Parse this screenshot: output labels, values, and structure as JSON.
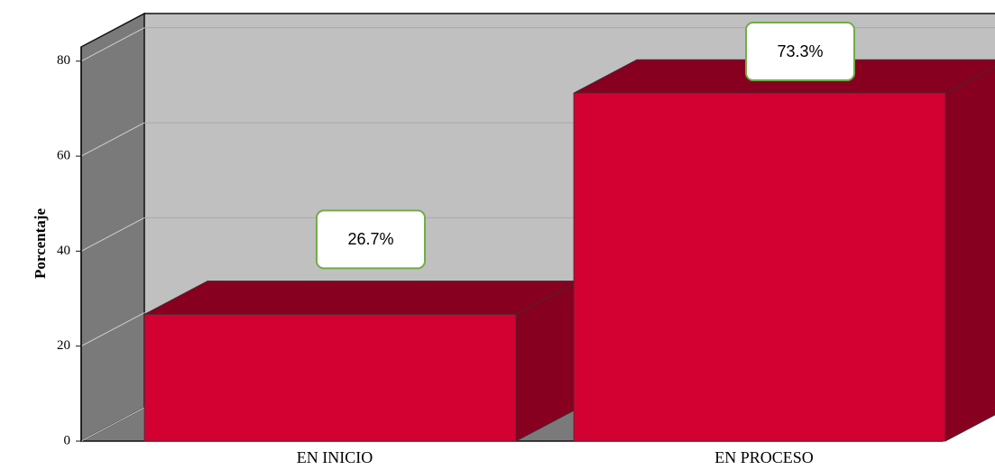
{
  "chart_data": {
    "type": "bar3d",
    "y_label": "Porcentaje",
    "categories": [
      "EN INICIO",
      "EN PROCESO"
    ],
    "values": [
      26.7,
      73.3
    ],
    "value_labels": [
      "26.7%",
      "73.3%"
    ],
    "color": "#d30032",
    "ylim": [
      0,
      83
    ],
    "yticks": [
      0,
      20,
      40,
      60,
      80
    ],
    "grid": true
  }
}
